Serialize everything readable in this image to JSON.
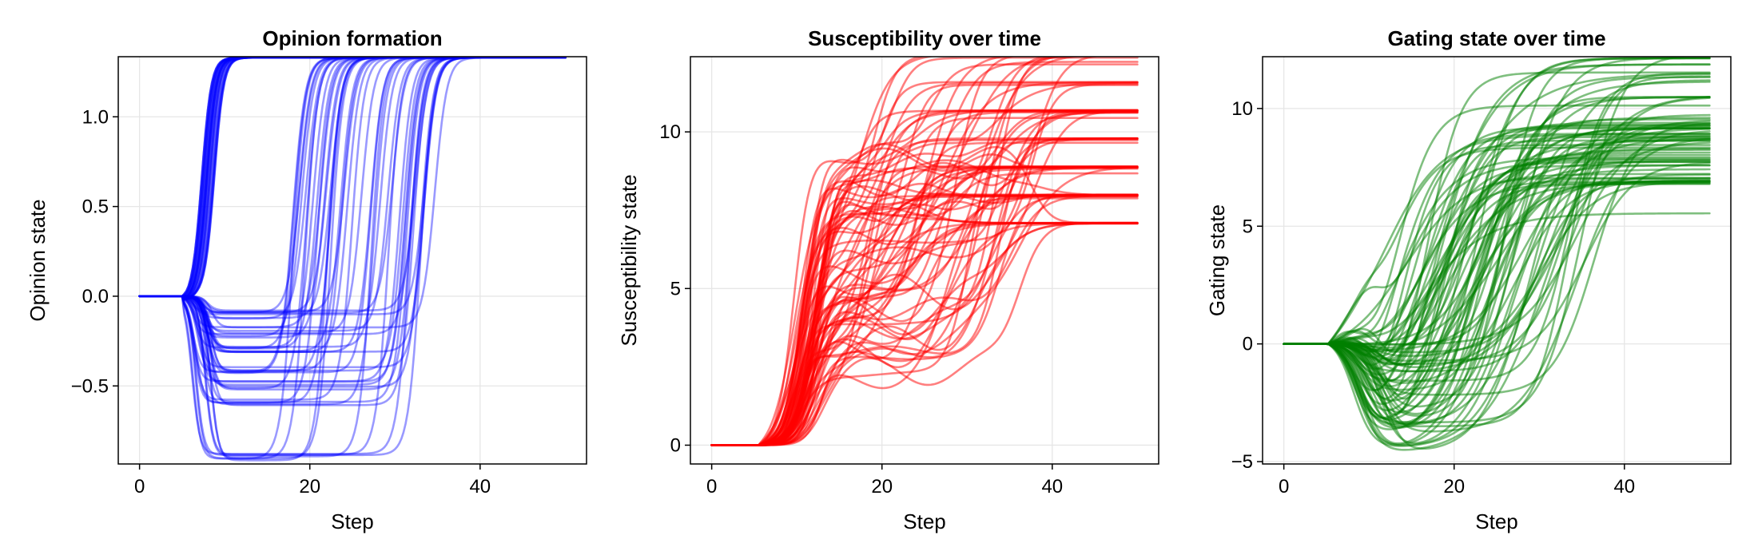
{
  "chart_data": [
    {
      "type": "line",
      "title": "Opinion formation",
      "xlabel": "Step",
      "ylabel": "Opinion state",
      "xlim": [
        -2.5,
        52.5
      ],
      "ylim": [
        -0.935,
        1.335
      ],
      "xticks": [
        0,
        20,
        40
      ],
      "xtick_labels": [
        "0",
        "20",
        "40"
      ],
      "yticks": [
        -0.5,
        0.0,
        0.5,
        1.0
      ],
      "ytick_labels": [
        "−0.5",
        "0.0",
        "0.5",
        "1.0"
      ],
      "grid": true,
      "legend": "none",
      "color": "#0000ff",
      "opacity": 0.4,
      "n_series": 80,
      "x_range": [
        0,
        50
      ],
      "description_values": {
        "initial_value": 0.0,
        "final_upper_value": 1.33,
        "intermediate_plateaus": [
          -0.9,
          -0.6,
          -0.5,
          -0.4,
          -0.3,
          -0.2,
          -0.1
        ]
      }
    },
    {
      "type": "line",
      "title": "Susceptibility over time",
      "xlabel": "Step",
      "ylabel": "Susceptibility state",
      "xlim": [
        -2.5,
        52.5
      ],
      "ylim": [
        -0.6,
        12.4
      ],
      "xticks": [
        0,
        20,
        40
      ],
      "xtick_labels": [
        "0",
        "20",
        "40"
      ],
      "yticks": [
        0,
        5,
        10
      ],
      "ytick_labels": [
        "0",
        "5",
        "10"
      ],
      "grid": true,
      "legend": "none",
      "color": "#ff0000",
      "opacity": 0.5,
      "n_series": 80,
      "x_range": [
        0,
        50
      ],
      "description_values": {
        "initial_value": 0.0,
        "final_levels": [
          7.1,
          8.0,
          8.9,
          9.8,
          10.7,
          11.6,
          12.5
        ]
      }
    },
    {
      "type": "line",
      "title": "Gating state over time",
      "xlabel": "Step",
      "ylabel": "Gating state",
      "xlim": [
        -2.5,
        52.5
      ],
      "ylim": [
        -5.1,
        12.2
      ],
      "xticks": [
        0,
        20,
        40
      ],
      "xtick_labels": [
        "0",
        "20",
        "40"
      ],
      "yticks": [
        -5,
        0,
        5,
        10
      ],
      "ytick_labels": [
        "−5",
        "0",
        "5",
        "10"
      ],
      "grid": true,
      "legend": "none",
      "color": "#008000",
      "opacity": 0.5,
      "n_series": 80,
      "x_range": [
        0,
        50
      ],
      "description_values": {
        "initial_value": 0.0,
        "min_value": -5.0,
        "final_levels": [
          6.9,
          7.8,
          8.7,
          9.2,
          9.5,
          10.4,
          11.3,
          12.0
        ]
      }
    }
  ]
}
